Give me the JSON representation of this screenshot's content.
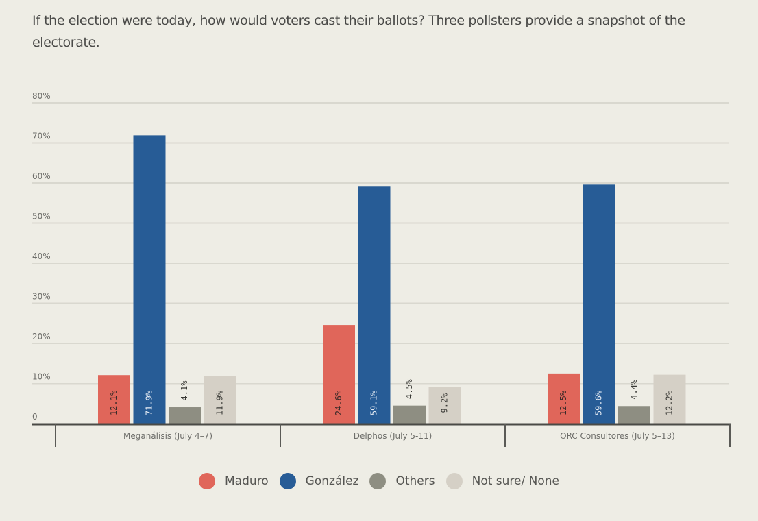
{
  "subtitle": "If the election were today, how would voters cast their ballots? Three pollsters provide a snapshot of the electorate.",
  "chart_data": {
    "type": "bar",
    "title": "",
    "xlabel": "",
    "ylabel": "",
    "ylim": [
      0,
      80
    ],
    "grid": true,
    "legend_position": "bottom",
    "y_ticks": [
      {
        "value": 0,
        "label": "0"
      },
      {
        "value": 10,
        "label": "10%"
      },
      {
        "value": 20,
        "label": "20%"
      },
      {
        "value": 30,
        "label": "30%"
      },
      {
        "value": 40,
        "label": "40%"
      },
      {
        "value": 50,
        "label": "50%"
      },
      {
        "value": 60,
        "label": "60%"
      },
      {
        "value": 70,
        "label": "70%"
      },
      {
        "value": 80,
        "label": "80%"
      }
    ],
    "categories": [
      "Meganálisis (July 4–7)",
      "Delphos (July 5-11)",
      "ORC Consultores (July 5–13)"
    ],
    "series": [
      {
        "name": "Maduro",
        "color": "#e0665a",
        "label_color": "#3a2a28",
        "label_inside": true,
        "values": [
          12.1,
          24.6,
          12.5
        ],
        "labels": [
          "12.1%",
          "24.6%",
          "12.5%"
        ]
      },
      {
        "name": "González",
        "color": "#275c96",
        "label_color": "#e6ecf4",
        "label_inside": true,
        "values": [
          71.9,
          59.1,
          59.6
        ],
        "labels": [
          "71.9%",
          "59.1%",
          "59.6%"
        ]
      },
      {
        "name": "Others",
        "color": "#8e8e82",
        "label_color": "#3a3a36",
        "label_inside": false,
        "values": [
          4.1,
          4.5,
          4.4
        ],
        "labels": [
          "4.1%",
          "4.5%",
          "4.4%"
        ]
      },
      {
        "name": "Not sure/ None",
        "color": "#d5d0c6",
        "label_color": "#3a3a36",
        "label_inside": true,
        "values": [
          11.9,
          9.2,
          12.2
        ],
        "labels": [
          "11.9%",
          "9.2%",
          "12.2%"
        ]
      }
    ]
  }
}
